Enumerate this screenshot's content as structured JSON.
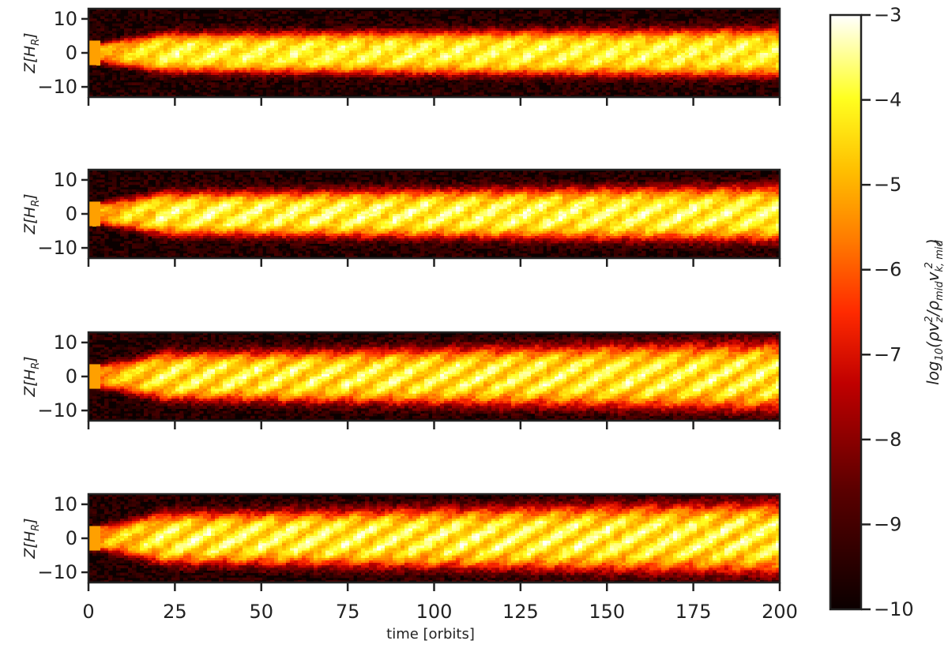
{
  "chart_data": {
    "type": "heatmap",
    "panel_count": 4,
    "colormap": "hot",
    "grid": false,
    "x": {
      "label": "time [orbits]",
      "range": [
        0,
        200
      ],
      "ticks": [
        0,
        25,
        50,
        75,
        100,
        125,
        150,
        175,
        200
      ],
      "tick_labels": [
        "0",
        "25",
        "50",
        "75",
        "100",
        "125",
        "150",
        "175",
        "200"
      ]
    },
    "y": {
      "label": "Z[H_R]",
      "label_base": "Z[H",
      "label_sub": "R",
      "label_end": "]",
      "range": [
        -13,
        13
      ],
      "ticks": [
        10,
        0,
        -10
      ],
      "tick_labels": [
        "10",
        "0",
        "−10"
      ]
    },
    "colorbar": {
      "label": "log10(ρv_z^2/ρ_mid v_k,mid^2)",
      "label_parts": {
        "pre": "log",
        "pre_sub": "10",
        "open": "(ρv",
        "v_sub": "z",
        "v_sup": "2",
        "mid": "/ρ",
        "rho_sub": "mid",
        "v": "v",
        "vk_sub": "k, mid",
        "vk_sup": "2",
        "close": ")"
      },
      "range": [
        -10,
        -3
      ],
      "ticks": [
        -3,
        -4,
        -5,
        -6,
        -7,
        -8,
        -9,
        -10
      ],
      "tick_labels": [
        "−3",
        "−4",
        "−5",
        "−6",
        "−7",
        "−8",
        "−9",
        "−10"
      ]
    },
    "panels": [
      {
        "peak_log_value": -3.6,
        "half_width_early": 5.0,
        "half_width_late": 6.5,
        "wave_strength": 0.5
      },
      {
        "peak_log_value": -3.4,
        "half_width_early": 5.5,
        "half_width_late": 7.5,
        "wave_strength": 0.6
      },
      {
        "peak_log_value": -3.5,
        "half_width_early": 6.0,
        "half_width_late": 9.5,
        "wave_strength": 0.7
      },
      {
        "peak_log_value": -3.4,
        "half_width_early": 6.5,
        "half_width_late": 10.0,
        "wave_strength": 0.7
      }
    ]
  }
}
